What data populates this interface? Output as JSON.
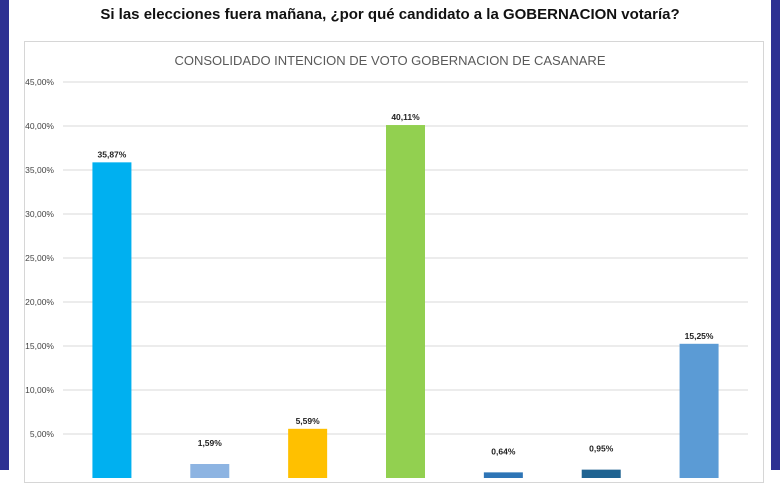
{
  "page": {
    "question": "Si las elecciones fuera mañana, ¿por qué candidato a la GOBERNACION votaría?"
  },
  "chart_data": {
    "type": "bar",
    "title": "CONSOLIDADO INTENCION DE VOTO GOBERNACION DE CASANARE",
    "xlabel": "",
    "ylabel": "",
    "ylim": [
      0,
      45
    ],
    "yticks": [
      "5,00%",
      "10,00%",
      "15,00%",
      "20,00%",
      "25,00%",
      "30,00%",
      "35,00%",
      "40,00%",
      "45,00%"
    ],
    "ytick_values": [
      5,
      10,
      15,
      20,
      25,
      30,
      35,
      40,
      45
    ],
    "grid": true,
    "values": [
      35.87,
      1.59,
      5.59,
      40.11,
      0.64,
      0.95,
      15.25
    ],
    "value_labels": [
      "35,87%",
      "1,59%",
      "5,59%",
      "40,11%",
      "0,64%",
      "0,95%",
      "15,25%"
    ],
    "colors": [
      "#00b0f0",
      "#8db4e2",
      "#ffc000",
      "#92d050",
      "#2e75b6",
      "#1f6391",
      "#5b9bd5"
    ]
  }
}
